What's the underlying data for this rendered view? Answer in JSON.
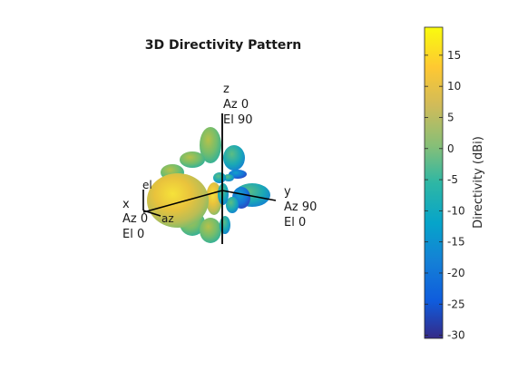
{
  "chart_data": {
    "type": "heatmap",
    "title": "3D Directivity Pattern",
    "axes_labels": {
      "x": [
        "x",
        "Az 0",
        "El 0"
      ],
      "y": [
        "y",
        "Az 90",
        "El 0"
      ],
      "z": [
        "z",
        "Az 0",
        "El 90"
      ],
      "el": "el",
      "az": "az"
    },
    "colorbar": {
      "label": "Directivity (dBi)",
      "range": [
        -30.5,
        19.5
      ],
      "ticks": [
        15,
        10,
        5,
        0,
        -5,
        -10,
        -15,
        -20,
        -25,
        -30
      ],
      "colormap": "parula"
    }
  },
  "colors": {
    "axis": "#000000",
    "stops": [
      "#352a87",
      "#0f5cdd",
      "#1481d6",
      "#06a4ca",
      "#2eb7a4",
      "#87bf77",
      "#d1bb59",
      "#fec832",
      "#f9fb0e"
    ]
  }
}
